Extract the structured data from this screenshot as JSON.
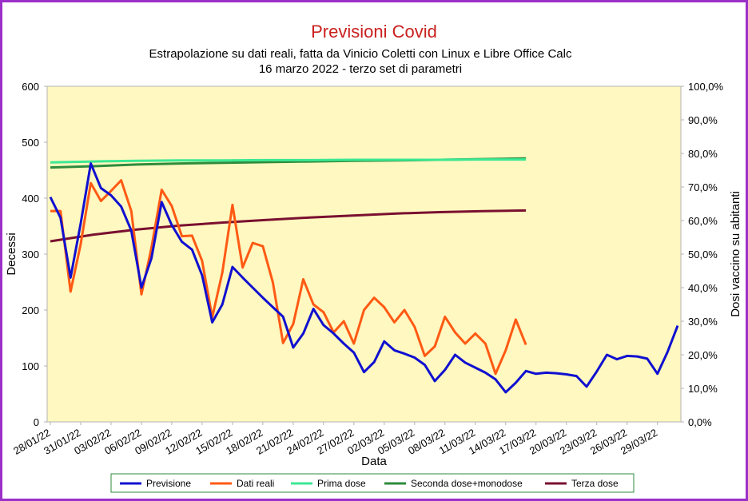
{
  "chart_data": {
    "type": "line",
    "title": "Previsioni Covid",
    "subtitle_lines": [
      "Estrapolazione su dati reali, fatta da Vinicio Coletti con Linux e Libre Office Calc",
      "16 marzo 2022 - terzo set di parametri"
    ],
    "xlabel": "Data",
    "ylabel": "Decessi",
    "y2label": "Dosi vaccino su abitanti",
    "ylim": [
      0,
      600
    ],
    "y2lim": [
      0,
      1
    ],
    "yticks": [
      "0",
      "100",
      "200",
      "300",
      "400",
      "500",
      "600"
    ],
    "y2ticks": [
      "0,0%",
      "10,0%",
      "20,0%",
      "30,0%",
      "40,0%",
      "50,0%",
      "60,0%",
      "70,0%",
      "80,0%",
      "90,0%",
      "100,0%"
    ],
    "x_tick_labels": [
      "28/01/22",
      "31/01/22",
      "03/02/22",
      "06/02/22",
      "09/02/22",
      "12/02/22",
      "15/02/22",
      "18/02/22",
      "21/02/22",
      "24/02/22",
      "27/02/22",
      "02/03/22",
      "05/03/22",
      "08/03/22",
      "11/03/22",
      "14/03/22",
      "17/03/22",
      "20/03/22",
      "23/03/22",
      "26/03/22",
      "29/03/22"
    ],
    "x_start": "28/01/22",
    "x_end": "29/03/22",
    "grid": false,
    "plot_background": "#fff8c0",
    "legend_position": "bottom",
    "series": [
      {
        "name": "Previsione",
        "color": "#1010d0",
        "axis": "left",
        "values": [
          402,
          365,
          258,
          355,
          462,
          418,
          405,
          385,
          342,
          240,
          293,
          393,
          352,
          322,
          308,
          262,
          178,
          210,
          277,
          258,
          240,
          222,
          205,
          188,
          133,
          158,
          202,
          173,
          158,
          140,
          124,
          89,
          107,
          144,
          128,
          122,
          115,
          102,
          73,
          93,
          120,
          106,
          97,
          88,
          76,
          53,
          70,
          91,
          86,
          88,
          87,
          85,
          82,
          63,
          90,
          120,
          112,
          118,
          117,
          113,
          86,
          125,
          172
        ]
      },
      {
        "name": "Dati reali",
        "color": "#ff5a14",
        "axis": "left",
        "values": [
          377,
          377,
          233,
          318,
          427,
          395,
          413,
          432,
          377,
          228,
          312,
          415,
          386,
          332,
          333,
          288,
          187,
          267,
          388,
          276,
          320,
          314,
          249,
          141,
          175,
          255,
          210,
          196,
          160,
          180,
          140,
          200,
          222,
          205,
          178,
          200,
          170,
          118,
          135,
          188,
          160,
          140,
          158,
          140,
          86,
          128,
          183,
          138
        ]
      },
      {
        "name": "Prima dose",
        "color": "#3ce893",
        "axis": "right",
        "values": [
          0.773,
          0.776,
          0.778,
          0.779,
          0.779,
          0.78,
          0.78,
          0.781,
          0.781,
          0.781,
          0.782,
          0.782
        ]
      },
      {
        "name": "Seconda dose+monodose",
        "color": "#2e8b3c",
        "axis": "right",
        "values": [
          0.758,
          0.762,
          0.767,
          0.77,
          0.772,
          0.774,
          0.776,
          0.778,
          0.779,
          0.781,
          0.783,
          0.785
        ]
      },
      {
        "name": "Terza dose",
        "color": "#7a1030",
        "axis": "right",
        "values": [
          0.538,
          0.558,
          0.573,
          0.585,
          0.594,
          0.602,
          0.609,
          0.615,
          0.621,
          0.625,
          0.628,
          0.63
        ]
      }
    ]
  }
}
